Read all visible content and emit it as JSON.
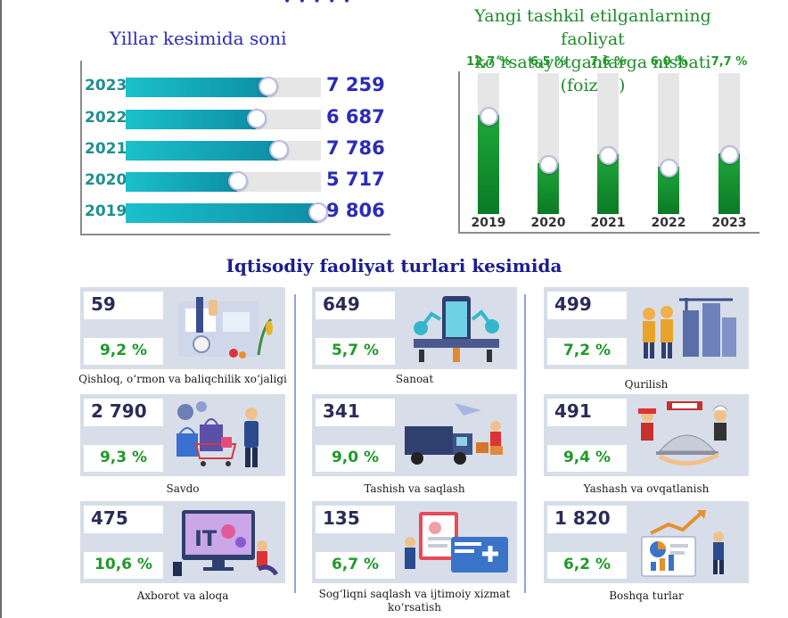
{
  "left_chart": {
    "title": "Yillar kesimida soni",
    "chart_data": {
      "type": "bar",
      "orientation": "horizontal",
      "categories": [
        "2023",
        "2022",
        "2021",
        "2020",
        "2019"
      ],
      "values": [
        7259,
        6687,
        7786,
        5717,
        9806
      ],
      "value_labels": [
        "7 259",
        "6 687",
        "7 786",
        "5 717",
        "9 806"
      ],
      "xlim": [
        0,
        10000
      ],
      "colors": {
        "bar": "#13a8bb",
        "track": "#e6e6e6",
        "label": "#2b2bb8",
        "year": "#1f8f8f"
      }
    }
  },
  "right_chart": {
    "title_line1": "Yangi tashkil etilganlarning faoliyat",
    "title_line2": "ko‘rsatayotganlarga nisbati (foizda)",
    "chart_data": {
      "type": "bar",
      "orientation": "vertical",
      "categories": [
        "2019",
        "2020",
        "2021",
        "2022",
        "2023"
      ],
      "values": [
        12.7,
        6.5,
        7.6,
        6.0,
        7.7
      ],
      "value_labels": [
        "12,7 %",
        "6,5 %",
        "7,6 %",
        "6,0 %",
        "7,7 %"
      ],
      "ylim": [
        0,
        18
      ],
      "colors": {
        "bar": "#17982f",
        "track": "#e6e6e6",
        "label": "#1e9a2a"
      }
    }
  },
  "section_title": "Iqtisodiy faoliyat turlari kesimida",
  "cards": [
    {
      "count": "59",
      "pct": "9,2 %",
      "label": "Qishloq, o‘rmon va baliqchilik xo‘jaligi",
      "icon": "microscope-agriculture-illustration"
    },
    {
      "count": "649",
      "pct": "5,7 %",
      "label": "Sanoat",
      "icon": "factory-robot-illustration"
    },
    {
      "count": "499",
      "pct": "7,2 %",
      "label": "Qurilish",
      "icon": "construction-workers-illustration"
    },
    {
      "count": "2 790",
      "pct": "9,3 %",
      "label": "Savdo",
      "icon": "shopping-cart-illustration"
    },
    {
      "count": "341",
      "pct": "9,0 %",
      "label": "Tashish va saqlash",
      "icon": "delivery-truck-illustration"
    },
    {
      "count": "491",
      "pct": "9,4 %",
      "label": "Yashash va ovqatlanish",
      "icon": "hotel-restaurant-illustration"
    },
    {
      "count": "475",
      "pct": "10,6 %",
      "label": "Axborot va aloqa",
      "icon": "it-computer-illustration"
    },
    {
      "count": "135",
      "pct": "6,7 %",
      "label": "Sog‘liqni saqlash va ijtimoiy xizmat ko‘rsatish",
      "icon": "health-card-illustration"
    },
    {
      "count": "1 820",
      "pct": "6,2 %",
      "label": "Boshqa turlar",
      "icon": "business-chart-illustration"
    }
  ]
}
